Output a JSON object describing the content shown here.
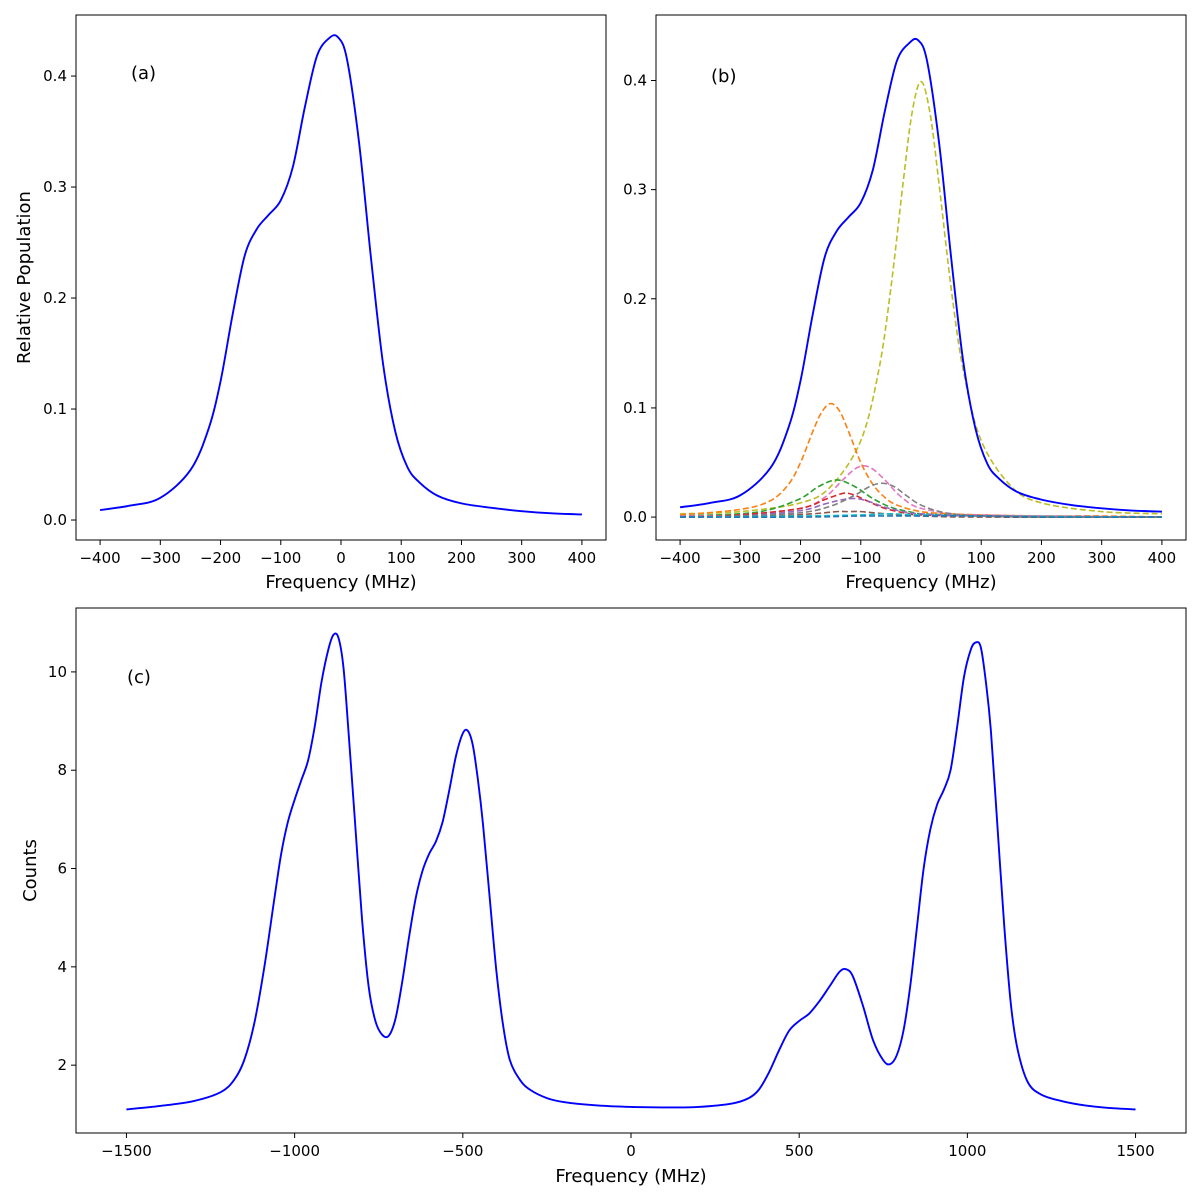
{
  "chart_data": [
    {
      "id": "a",
      "type": "line",
      "panel_label": "(a)",
      "xlabel": "Frequency (MHz)",
      "ylabel": "Relative Population",
      "xlim": [
        -440,
        440
      ],
      "ylim": [
        -0.018,
        0.455
      ],
      "xticks": [
        -400,
        -300,
        -200,
        -100,
        0,
        100,
        200,
        300,
        400
      ],
      "xtick_labels": [
        "−400",
        "−300",
        "−200",
        "−100",
        "0",
        "100",
        "200",
        "300",
        "400"
      ],
      "yticks": [
        0.0,
        0.1,
        0.2,
        0.3,
        0.4
      ],
      "ytick_labels": [
        "0.0",
        "0.1",
        "0.2",
        "0.3",
        "0.4"
      ],
      "series": [
        {
          "name": "total",
          "color": "#0000ff",
          "dashed": false,
          "x": [
            -400,
            -350,
            -300,
            -250,
            -220,
            -200,
            -180,
            -160,
            -140,
            -120,
            -100,
            -80,
            -60,
            -40,
            -20,
            -5,
            10,
            30,
            50,
            70,
            90,
            110,
            130,
            160,
            200,
            250,
            300,
            350,
            400
          ],
          "y": [
            0.009,
            0.013,
            0.02,
            0.045,
            0.082,
            0.125,
            0.185,
            0.238,
            0.262,
            0.275,
            0.288,
            0.318,
            0.372,
            0.418,
            0.434,
            0.435,
            0.415,
            0.34,
            0.235,
            0.14,
            0.08,
            0.048,
            0.034,
            0.022,
            0.015,
            0.011,
            0.008,
            0.006,
            0.005
          ]
        }
      ]
    },
    {
      "id": "b",
      "type": "line",
      "panel_label": "(b)",
      "xlabel": "Frequency (MHz)",
      "ylabel": "",
      "xlim": [
        -440,
        440
      ],
      "ylim": [
        -0.021,
        0.46
      ],
      "xticks": [
        -400,
        -300,
        -200,
        -100,
        0,
        100,
        200,
        300,
        400
      ],
      "xtick_labels": [
        "−400",
        "−300",
        "−200",
        "−100",
        "0",
        "100",
        "200",
        "300",
        "400"
      ],
      "yticks": [
        0.0,
        0.1,
        0.2,
        0.3,
        0.4
      ],
      "ytick_labels": [
        "0.0",
        "0.1",
        "0.2",
        "0.3",
        "0.4"
      ],
      "series": [
        {
          "name": "total",
          "color": "#0000ff",
          "dashed": false,
          "x": [
            -400,
            -350,
            -300,
            -250,
            -220,
            -200,
            -180,
            -160,
            -140,
            -120,
            -100,
            -80,
            -60,
            -40,
            -20,
            -5,
            10,
            30,
            50,
            70,
            90,
            110,
            130,
            160,
            200,
            250,
            300,
            350,
            400
          ],
          "y": [
            0.009,
            0.013,
            0.02,
            0.045,
            0.082,
            0.125,
            0.185,
            0.238,
            0.262,
            0.275,
            0.288,
            0.318,
            0.372,
            0.418,
            0.434,
            0.437,
            0.418,
            0.343,
            0.238,
            0.143,
            0.082,
            0.049,
            0.035,
            0.023,
            0.016,
            0.011,
            0.008,
            0.006,
            0.005
          ]
        },
        {
          "name": "component-olive",
          "color": "#bcbd22",
          "dashed": true,
          "x": [
            -400,
            -300,
            -200,
            -150,
            -100,
            -70,
            -50,
            -30,
            -15,
            0,
            15,
            30,
            50,
            70,
            100,
            150,
            200,
            300,
            400
          ],
          "y": [
            0.003,
            0.005,
            0.013,
            0.028,
            0.07,
            0.135,
            0.21,
            0.305,
            0.37,
            0.399,
            0.37,
            0.305,
            0.21,
            0.135,
            0.07,
            0.028,
            0.013,
            0.005,
            0.003
          ]
        },
        {
          "name": "component-orange",
          "color": "#ff7f0e",
          "dashed": true,
          "x": [
            -400,
            -300,
            -250,
            -220,
            -200,
            -180,
            -165,
            -150,
            -135,
            -120,
            -100,
            -80,
            -60,
            -40,
            0,
            50,
            100,
            200,
            300,
            400
          ],
          "y": [
            0.002,
            0.007,
            0.015,
            0.03,
            0.05,
            0.078,
            0.096,
            0.104,
            0.097,
            0.078,
            0.05,
            0.03,
            0.018,
            0.011,
            0.005,
            0.003,
            0.002,
            0.001,
            0.001,
            0.0
          ]
        },
        {
          "name": "component-green",
          "color": "#2ca02c",
          "dashed": true,
          "x": [
            -400,
            -300,
            -250,
            -200,
            -170,
            -140,
            -110,
            -80,
            -50,
            -20,
            0,
            50,
            100,
            200,
            400
          ],
          "y": [
            0.001,
            0.003,
            0.007,
            0.017,
            0.028,
            0.034,
            0.028,
            0.017,
            0.009,
            0.005,
            0.003,
            0.002,
            0.001,
            0.0,
            0.0
          ]
        },
        {
          "name": "component-pink",
          "color": "#e377c2",
          "dashed": true,
          "x": [
            -400,
            -300,
            -200,
            -160,
            -130,
            -110,
            -95,
            -80,
            -60,
            -40,
            -20,
            0,
            50,
            100,
            200,
            400
          ],
          "y": [
            0.001,
            0.002,
            0.008,
            0.018,
            0.034,
            0.044,
            0.047,
            0.044,
            0.034,
            0.022,
            0.013,
            0.008,
            0.003,
            0.002,
            0.001,
            0.0
          ]
        },
        {
          "name": "component-red",
          "color": "#d62728",
          "dashed": true,
          "x": [
            -400,
            -300,
            -200,
            -160,
            -140,
            -125,
            -110,
            -90,
            -60,
            -20,
            0,
            100,
            400
          ],
          "y": [
            0.0,
            0.002,
            0.008,
            0.016,
            0.02,
            0.022,
            0.02,
            0.015,
            0.008,
            0.003,
            0.002,
            0.001,
            0.0
          ]
        },
        {
          "name": "component-purple",
          "color": "#9467bd",
          "dashed": true,
          "x": [
            -400,
            -300,
            -200,
            -160,
            -130,
            -110,
            -90,
            -60,
            -20,
            0,
            100,
            400
          ],
          "y": [
            0.0,
            0.001,
            0.006,
            0.012,
            0.016,
            0.017,
            0.015,
            0.009,
            0.004,
            0.003,
            0.001,
            0.0
          ]
        },
        {
          "name": "component-gray",
          "color": "#7f7f7f",
          "dashed": true,
          "x": [
            -400,
            -300,
            -200,
            -150,
            -110,
            -85,
            -65,
            -45,
            -25,
            0,
            40,
            100,
            200,
            400
          ],
          "y": [
            0.0,
            0.001,
            0.004,
            0.01,
            0.02,
            0.028,
            0.031,
            0.028,
            0.02,
            0.011,
            0.004,
            0.001,
            0.0,
            0.0
          ]
        },
        {
          "name": "component-brown",
          "color": "#8c564b",
          "dashed": true,
          "x": [
            -400,
            -250,
            -180,
            -140,
            -120,
            -100,
            -60,
            0,
            100,
            400
          ],
          "y": [
            0.0,
            0.001,
            0.003,
            0.005,
            0.005,
            0.005,
            0.003,
            0.001,
            0.0,
            0.0
          ]
        },
        {
          "name": "component-cyan",
          "color": "#17becf",
          "dashed": true,
          "x": [
            -400,
            -200,
            -100,
            -50,
            0,
            100,
            400
          ],
          "y": [
            0.0,
            0.001,
            0.002,
            0.003,
            0.002,
            0.001,
            0.0
          ]
        },
        {
          "name": "component-blue",
          "color": "#1f77b4",
          "dashed": true,
          "x": [
            -400,
            -200,
            -100,
            0,
            100,
            200,
            400
          ],
          "y": [
            0.0,
            0.0,
            0.001,
            0.001,
            0.001,
            0.0,
            0.0
          ]
        }
      ]
    },
    {
      "id": "c",
      "type": "line",
      "panel_label": "(c)",
      "xlabel": "Frequency (MHz)",
      "ylabel": "Counts",
      "xlim": [
        -1650,
        1650
      ],
      "ylim": [
        0.62,
        11.3
      ],
      "xticks": [
        -1500,
        -1000,
        -500,
        0,
        500,
        1000,
        1500
      ],
      "xtick_labels": [
        "−1500",
        "−1000",
        "−500",
        "0",
        "500",
        "1000",
        "1500"
      ],
      "yticks": [
        2,
        4,
        6,
        8,
        10
      ],
      "ytick_labels": [
        "2",
        "4",
        "6",
        "8",
        "10"
      ],
      "series": [
        {
          "name": "spectrum",
          "color": "#0000ff",
          "dashed": false,
          "x": [
            -1500,
            -1400,
            -1300,
            -1220,
            -1180,
            -1150,
            -1120,
            -1090,
            -1060,
            -1040,
            -1020,
            -1000,
            -980,
            -960,
            -940,
            -920,
            -900,
            -885,
            -870,
            -855,
            -840,
            -820,
            -800,
            -780,
            -760,
            -740,
            -720,
            -700,
            -680,
            -660,
            -640,
            -620,
            -600,
            -580,
            -560,
            -540,
            -520,
            -500,
            -485,
            -470,
            -455,
            -440,
            -420,
            -400,
            -380,
            -360,
            -330,
            -300,
            -250,
            -200,
            -100,
            0,
            120,
            200,
            300,
            350,
            380,
            410,
            440,
            470,
            500,
            530,
            560,
            590,
            620,
            640,
            660,
            690,
            720,
            750,
            770,
            790,
            810,
            830,
            850,
            870,
            890,
            910,
            930,
            950,
            970,
            990,
            1010,
            1025,
            1040,
            1055,
            1070,
            1090,
            1110,
            1130,
            1150,
            1180,
            1220,
            1280,
            1350,
            1420,
            1500
          ],
          "y": [
            1.1,
            1.17,
            1.27,
            1.45,
            1.7,
            2.1,
            2.85,
            4.0,
            5.4,
            6.3,
            6.95,
            7.4,
            7.8,
            8.2,
            8.9,
            9.8,
            10.45,
            10.75,
            10.7,
            10.1,
            8.8,
            6.9,
            5.0,
            3.6,
            2.9,
            2.62,
            2.6,
            2.95,
            3.7,
            4.6,
            5.4,
            5.95,
            6.3,
            6.55,
            6.95,
            7.6,
            8.3,
            8.75,
            8.8,
            8.5,
            7.8,
            6.9,
            5.4,
            3.9,
            2.8,
            2.1,
            1.7,
            1.5,
            1.33,
            1.25,
            1.18,
            1.15,
            1.14,
            1.15,
            1.22,
            1.33,
            1.5,
            1.85,
            2.3,
            2.7,
            2.9,
            3.05,
            3.3,
            3.6,
            3.9,
            3.95,
            3.8,
            3.2,
            2.5,
            2.1,
            2.02,
            2.2,
            2.7,
            3.6,
            4.8,
            6.0,
            6.8,
            7.3,
            7.6,
            8.0,
            8.9,
            9.9,
            10.45,
            10.6,
            10.5,
            9.8,
            8.8,
            6.8,
            4.8,
            3.2,
            2.3,
            1.65,
            1.4,
            1.27,
            1.18,
            1.13,
            1.1
          ]
        }
      ]
    }
  ]
}
